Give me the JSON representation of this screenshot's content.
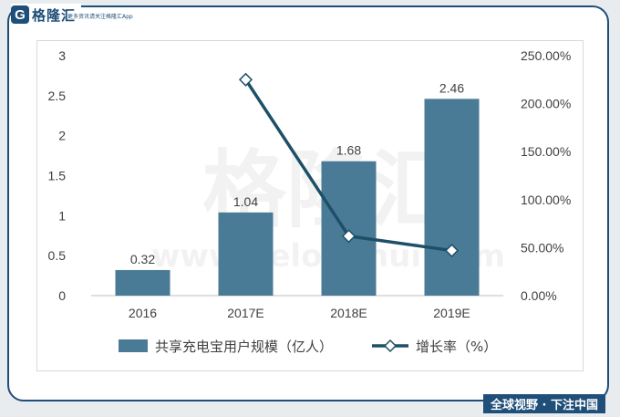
{
  "brand": {
    "logo_letter": "G",
    "name": "格隆汇",
    "tagline": "更多资讯请关注格隆汇App"
  },
  "watermark": {
    "main": "格隆汇",
    "sub": "www.gelonghui.com"
  },
  "footer": {
    "text": "全球视野 · 下注中国"
  },
  "colors": {
    "bar": "#4a7b96",
    "line": "#1d5068",
    "frame": "#1f4e79"
  },
  "chart_data": {
    "type": "bar",
    "categories": [
      "2016",
      "2017E",
      "2018E",
      "2019E"
    ],
    "series": [
      {
        "name": "共享充电宝用户规模（亿人）",
        "type": "bar",
        "axis": "left",
        "values": [
          0.32,
          1.04,
          1.68,
          2.46
        ],
        "data_labels": [
          "0.32",
          "1.04",
          "1.68",
          "2.46"
        ]
      },
      {
        "name": "增长率（%）",
        "type": "line",
        "axis": "right",
        "values": [
          null,
          225,
          62,
          47
        ]
      }
    ],
    "y_left": {
      "ylim": [
        0,
        3
      ],
      "ticks": [
        0,
        0.5,
        1,
        1.5,
        2,
        2.5,
        3
      ],
      "tick_labels": [
        "0",
        "0.5",
        "1",
        "1.5",
        "2",
        "2.5",
        "3"
      ]
    },
    "y_right": {
      "ylim": [
        0,
        250
      ],
      "ticks": [
        0,
        50,
        100,
        150,
        200,
        250
      ],
      "tick_labels": [
        "0.00%",
        "50.00%",
        "100.00%",
        "150.00%",
        "200.00%",
        "250.00%"
      ]
    },
    "grid": false,
    "legend": "bottom"
  }
}
